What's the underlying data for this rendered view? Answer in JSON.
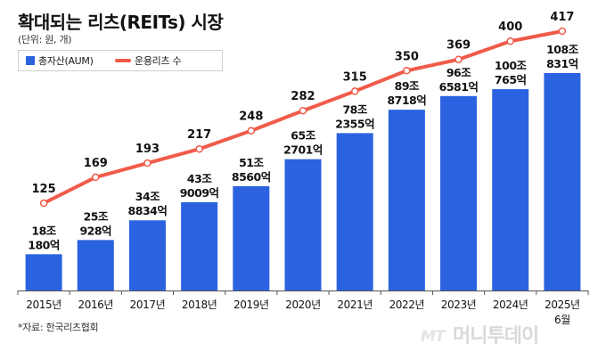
{
  "header": {
    "title": "확대되는 리츠(REITs) 시장",
    "unit": "(단위: 원, 개)"
  },
  "legend": {
    "bar_label": "총자산(AUM)",
    "line_label": "운용리츠 수"
  },
  "source": "*자료: 한국리츠협회",
  "watermark": {
    "logo": "MT",
    "text": "머니투데이"
  },
  "colors": {
    "bar": "#2b62e0",
    "line": "#f05b49",
    "marker_fill": "#ffffff"
  },
  "chart_data": {
    "type": "bar",
    "title": "확대되는 리츠(REITs) 시장",
    "categories": [
      "2015년",
      "2016년",
      "2017년",
      "2018년",
      "2019년",
      "2020년",
      "2021년",
      "2022년",
      "2023년",
      "2024년",
      "2025년"
    ],
    "category_sublabels": [
      "",
      "",
      "",
      "",
      "",
      "",
      "",
      "",
      "",
      "",
      "6월"
    ],
    "series": [
      {
        "name": "총자산(AUM)",
        "type": "bar",
        "unit": "조 원",
        "values": [
          18.018,
          25.0928,
          34.8834,
          43.9009,
          51.856,
          65.2701,
          78.2355,
          89.8718,
          96.6581,
          100.0765,
          108.0831
        ],
        "labels": [
          [
            "18조",
            "180억"
          ],
          [
            "25조",
            "928억"
          ],
          [
            "34조",
            "8834억"
          ],
          [
            "43조",
            "9009억"
          ],
          [
            "51조",
            "8560억"
          ],
          [
            "65조",
            "2701억"
          ],
          [
            "78조",
            "2355억"
          ],
          [
            "89조",
            "8718억"
          ],
          [
            "96조",
            "6581억"
          ],
          [
            "100조",
            "765억"
          ],
          [
            "108조",
            "831억"
          ]
        ]
      },
      {
        "name": "운용리츠 수",
        "type": "line",
        "unit": "개",
        "values": [
          125,
          169,
          193,
          217,
          248,
          282,
          315,
          350,
          369,
          400,
          417
        ]
      }
    ]
  }
}
